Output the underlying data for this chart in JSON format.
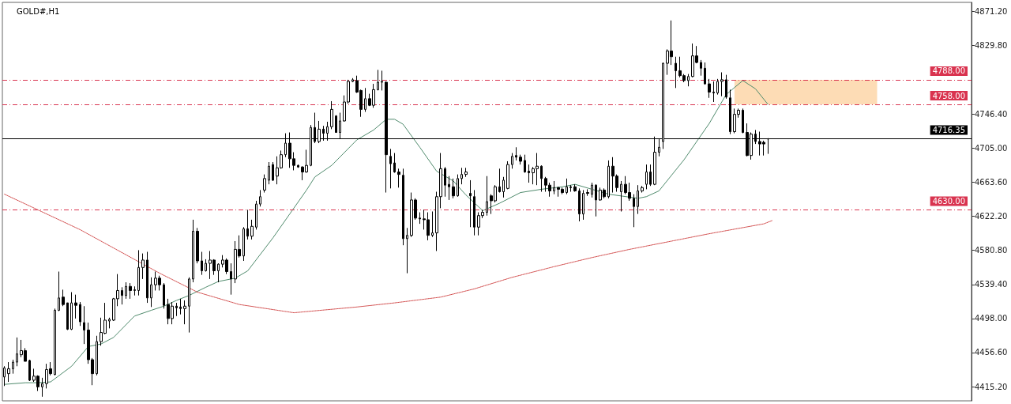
{
  "chart_data": {
    "type": "candlestick",
    "title": "GOLD#,H1",
    "categories": [
      null,
      null,
      null,
      null,
      null,
      null,
      null,
      null,
      null,
      null,
      null,
      null,
      null,
      null,
      null,
      null,
      null,
      null,
      null,
      null,
      null,
      null,
      null,
      null,
      null,
      null,
      null,
      null,
      null,
      null,
      null,
      null,
      null,
      null,
      null,
      null,
      null,
      null,
      null,
      null,
      null,
      null,
      null,
      null,
      null,
      null,
      null,
      null,
      null,
      null,
      null,
      null,
      null,
      null,
      null,
      null,
      null,
      null,
      null,
      null,
      null,
      null,
      null,
      null,
      null,
      null,
      null,
      null,
      null,
      null,
      null,
      null,
      null,
      null,
      null,
      null,
      null,
      null,
      null,
      null,
      null,
      null,
      null,
      null,
      null,
      null,
      null,
      null,
      null,
      null,
      null,
      null,
      null,
      null,
      null,
      null,
      null,
      null,
      null,
      null,
      null,
      null,
      null,
      null,
      null,
      null,
      null,
      null,
      null,
      null,
      null,
      null,
      null,
      null,
      null,
      null,
      null,
      null,
      null,
      null,
      null,
      null,
      null,
      null,
      null,
      null,
      null,
      null,
      null,
      null,
      null,
      null,
      null,
      null,
      null,
      null,
      null,
      null,
      null,
      null,
      null,
      null,
      null,
      null,
      null,
      null,
      null,
      null,
      null,
      null,
      null,
      null,
      null,
      null,
      null,
      null,
      null,
      null,
      null,
      null,
      null,
      null,
      null,
      null,
      null,
      null,
      null,
      null,
      null,
      null,
      null,
      null,
      null,
      null,
      null,
      null,
      null,
      null,
      null,
      null,
      null,
      null,
      null,
      null,
      null,
      null,
      null,
      null,
      null,
      null,
      null,
      null,
      null,
      null,
      null,
      null,
      null,
      null,
      null,
      null,
      null,
      null,
      null,
      null,
      null,
      null,
      null,
      null,
      null,
      null,
      null,
      null,
      null,
      null,
      null,
      null,
      null,
      null,
      null,
      null,
      null,
      null,
      null,
      null,
      null,
      null,
      null,
      null,
      null,
      null,
      null
    ],
    "ohlc": [
      [
        4427,
        4440,
        4416,
        4438
      ],
      [
        4431,
        4445,
        4421,
        4437
      ],
      [
        4437,
        4448,
        4431,
        4445
      ],
      [
        4445,
        4475,
        4440,
        4455
      ],
      [
        4454,
        4472,
        4451,
        4459
      ],
      [
        4459,
        4462,
        4446,
        4446
      ],
      [
        4447,
        4448,
        4422,
        4423
      ],
      [
        4423,
        4437,
        4421,
        4428
      ],
      [
        4428,
        4429,
        4410,
        4415
      ],
      [
        4415,
        4426,
        4403,
        4419
      ],
      [
        4419,
        4443,
        4413,
        4436
      ],
      [
        4437,
        4445,
        4429,
        4431
      ],
      [
        4430,
        4510,
        4429,
        4508
      ],
      [
        4508,
        4555,
        4507,
        4523
      ],
      [
        4524,
        4533,
        4513,
        4515
      ],
      [
        4517,
        4517,
        4484,
        4485
      ],
      [
        4485,
        4530,
        4484,
        4517
      ],
      [
        4517,
        4527,
        4498,
        4514
      ],
      [
        4515,
        4518,
        4489,
        4494
      ],
      [
        4493,
        4513,
        4467,
        4484
      ],
      [
        4484,
        4493,
        4443,
        4448
      ],
      [
        4448,
        4450,
        4417,
        4431
      ],
      [
        4431,
        4477,
        4429,
        4470
      ],
      [
        4470,
        4499,
        4465,
        4481
      ],
      [
        4480,
        4517,
        4479,
        4496
      ],
      [
        4495,
        4499,
        4486,
        4497
      ],
      [
        4496,
        4523,
        4495,
        4522
      ],
      [
        4522,
        4552,
        4513,
        4532
      ],
      [
        4532,
        4536,
        4515,
        4526
      ],
      [
        4526,
        4542,
        4522,
        4537
      ],
      [
        4537,
        4541,
        4522,
        4532
      ],
      [
        4532,
        4537,
        4526,
        4533
      ],
      [
        4532,
        4581,
        4526,
        4560
      ],
      [
        4560,
        4577,
        4546,
        4569
      ],
      [
        4569,
        4579,
        4517,
        4523
      ],
      [
        4523,
        4548,
        4512,
        4539
      ],
      [
        4539,
        4555,
        4532,
        4547
      ],
      [
        4547,
        4550,
        4532,
        4539
      ],
      [
        4539,
        4541,
        4510,
        4514
      ],
      [
        4515,
        4522,
        4491,
        4498
      ],
      [
        4498,
        4518,
        4491,
        4513
      ],
      [
        4513,
        4517,
        4501,
        4511
      ],
      [
        4512,
        4522,
        4503,
        4510
      ],
      [
        4510,
        4520,
        4491,
        4513
      ],
      [
        4513,
        4548,
        4481,
        4546
      ],
      [
        4546,
        4618,
        4542,
        4604
      ],
      [
        4604,
        4608,
        4565,
        4568
      ],
      [
        4568,
        4579,
        4551,
        4556
      ],
      [
        4556,
        4570,
        4555,
        4565
      ],
      [
        4565,
        4580,
        4546,
        4569
      ],
      [
        4569,
        4570,
        4551,
        4556
      ],
      [
        4556,
        4565,
        4542,
        4564
      ],
      [
        4564,
        4575,
        4560,
        4569
      ],
      [
        4569,
        4571,
        4552,
        4555
      ],
      [
        4555,
        4565,
        4527,
        4546
      ],
      [
        4546,
        4592,
        4541,
        4582
      ],
      [
        4582,
        4599,
        4572,
        4574
      ],
      [
        4574,
        4609,
        4568,
        4607
      ],
      [
        4607,
        4630,
        4594,
        4598
      ],
      [
        4598,
        4618,
        4594,
        4610
      ],
      [
        4609,
        4641,
        4606,
        4637
      ],
      [
        4637,
        4654,
        4634,
        4646
      ],
      [
        4654,
        4673,
        4651,
        4668
      ],
      [
        4666,
        4688,
        4661,
        4683
      ],
      [
        4685,
        4688,
        4665,
        4666
      ],
      [
        4671,
        4695,
        4661,
        4681
      ],
      [
        4681,
        4702,
        4680,
        4697
      ],
      [
        4697,
        4723,
        4694,
        4711
      ],
      [
        4711,
        4724,
        4681,
        4692
      ],
      [
        4692,
        4700,
        4678,
        4684
      ],
      [
        4684,
        4685,
        4681,
        4682
      ],
      [
        4682,
        4683,
        4666,
        4676
      ],
      [
        4676,
        4703,
        4675,
        4684
      ],
      [
        4684,
        4733,
        4683,
        4730
      ],
      [
        4730,
        4748,
        4711,
        4713
      ],
      [
        4713,
        4738,
        4711,
        4728
      ],
      [
        4728,
        4732,
        4714,
        4723
      ],
      [
        4723,
        4737,
        4714,
        4731
      ],
      [
        4731,
        4762,
        4728,
        4752
      ],
      [
        4744,
        4745,
        4724,
        4724
      ],
      [
        4724,
        4748,
        4716,
        4738
      ],
      [
        4738,
        4769,
        4737,
        4761
      ],
      [
        4761,
        4788,
        4759,
        4786
      ],
      [
        4786,
        4790,
        4785,
        4788
      ],
      [
        4787,
        4793,
        4772,
        4773
      ],
      [
        4775,
        4776,
        4743,
        4752
      ],
      [
        4752,
        4778,
        4749,
        4765
      ],
      [
        4765,
        4771,
        4756,
        4757
      ],
      [
        4757,
        4783,
        4754,
        4776
      ],
      [
        4776,
        4800,
        4775,
        4785
      ],
      [
        4785,
        4799,
        4775,
        4786
      ],
      [
        4785,
        4786,
        4651,
        4697
      ],
      [
        4695,
        4704,
        4656,
        4686
      ],
      [
        4687,
        4699,
        4675,
        4676
      ],
      [
        4676,
        4680,
        4657,
        4673
      ],
      [
        4672,
        4680,
        4587,
        4595
      ],
      [
        4595,
        4608,
        4553,
        4599
      ],
      [
        4599,
        4651,
        4597,
        4642
      ],
      [
        4642,
        4644,
        4618,
        4620
      ],
      [
        4620,
        4627,
        4613,
        4619
      ],
      [
        4619,
        4630,
        4606,
        4618
      ],
      [
        4618,
        4627,
        4593,
        4599
      ],
      [
        4599,
        4628,
        4597,
        4602
      ],
      [
        4602,
        4652,
        4580,
        4646
      ],
      [
        4646,
        4699,
        4632,
        4680
      ],
      [
        4680,
        4682,
        4646,
        4660
      ],
      [
        4661,
        4671,
        4642,
        4658
      ],
      [
        4658,
        4668,
        4644,
        4647
      ],
      [
        4647,
        4673,
        4646,
        4668
      ],
      [
        4668,
        4681,
        4661,
        4673
      ],
      [
        4673,
        4681,
        4670,
        4676
      ],
      [
        4650,
        4666,
        4609,
        4647
      ],
      [
        4646,
        4654,
        4599,
        4609
      ],
      [
        4609,
        4627,
        4599,
        4623
      ],
      [
        4623,
        4630,
        4620,
        4627
      ],
      [
        4627,
        4671,
        4623,
        4640
      ],
      [
        4647,
        4649,
        4625,
        4641
      ],
      [
        4641,
        4660,
        4639,
        4658
      ],
      [
        4658,
        4680,
        4651,
        4652
      ],
      [
        4652,
        4670,
        4645,
        4666
      ],
      [
        4656,
        4689,
        4655,
        4685
      ],
      [
        4685,
        4699,
        4680,
        4695
      ],
      [
        4696,
        4706,
        4690,
        4694
      ],
      [
        4694,
        4697,
        4685,
        4689
      ],
      [
        4690,
        4697,
        4675,
        4676
      ],
      [
        4677,
        4685,
        4663,
        4675
      ],
      [
        4675,
        4682,
        4661,
        4680
      ],
      [
        4680,
        4699,
        4660,
        4683
      ],
      [
        4683,
        4684,
        4652,
        4668
      ],
      [
        4668,
        4670,
        4652,
        4660
      ],
      [
        4660,
        4663,
        4646,
        4653
      ],
      [
        4653,
        4665,
        4649,
        4657
      ],
      [
        4657,
        4658,
        4646,
        4655
      ],
      [
        4655,
        4657,
        4649,
        4651
      ],
      [
        4651,
        4668,
        4649,
        4658
      ],
      [
        4658,
        4660,
        4652,
        4657
      ],
      [
        4658,
        4661,
        4652,
        4653
      ],
      [
        4653,
        4656,
        4616,
        4625
      ],
      [
        4625,
        4654,
        4618,
        4650
      ],
      [
        4651,
        4655,
        4647,
        4650
      ],
      [
        4649,
        4663,
        4645,
        4660
      ],
      [
        4660,
        4661,
        4622,
        4642
      ],
      [
        4642,
        4657,
        4641,
        4654
      ],
      [
        4654,
        4656,
        4644,
        4646
      ],
      [
        4646,
        4690,
        4644,
        4683
      ],
      [
        4683,
        4694,
        4651,
        4671
      ],
      [
        4671,
        4673,
        4652,
        4657
      ],
      [
        4652,
        4665,
        4628,
        4661
      ],
      [
        4661,
        4671,
        4649,
        4651
      ],
      [
        4651,
        4663,
        4641,
        4644
      ],
      [
        4644,
        4649,
        4609,
        4634
      ],
      [
        4634,
        4660,
        4625,
        4653
      ],
      [
        4653,
        4659,
        4651,
        4657
      ],
      [
        4661,
        4685,
        4655,
        4676
      ],
      [
        4676,
        4685,
        4659,
        4661
      ],
      [
        4661,
        4719,
        4660,
        4700
      ],
      [
        4700,
        4716,
        4695,
        4706
      ],
      [
        4713,
        4809,
        4704,
        4808
      ],
      [
        4808,
        4825,
        4794,
        4823
      ],
      [
        4823,
        4860,
        4806,
        4816
      ],
      [
        4808,
        4816,
        4778,
        4799
      ],
      [
        4799,
        4816,
        4791,
        4793
      ],
      [
        4793,
        4795,
        4785,
        4787
      ],
      [
        4787,
        4795,
        4780,
        4792
      ],
      [
        4792,
        4832,
        4791,
        4817
      ],
      [
        4817,
        4829,
        4808,
        4809
      ],
      [
        4809,
        4812,
        4793,
        4802
      ],
      [
        4802,
        4809,
        4782,
        4783
      ],
      [
        4783,
        4789,
        4766,
        4773
      ],
      [
        4773,
        4786,
        4761,
        4772
      ],
      [
        4772,
        4789,
        4770,
        4786
      ],
      [
        4786,
        4797,
        4768,
        4788
      ],
      [
        4788,
        4794,
        4765,
        4767
      ],
      [
        4766,
        4776,
        4722,
        4725
      ],
      [
        4725,
        4753,
        4723,
        4746
      ],
      [
        4746,
        4753,
        4742,
        4751
      ],
      [
        4751,
        4753,
        4723,
        4724
      ],
      [
        4724,
        4735,
        4695,
        4696
      ],
      [
        4696,
        4724,
        4691,
        4722
      ],
      [
        4722,
        4727,
        4710,
        4713
      ],
      [
        4713,
        4725,
        4696,
        4710
      ],
      [
        4712,
        4714,
        4696,
        4710
      ],
      [
        4716,
        4717,
        4698,
        4716.35
      ],
      null,
      null,
      null,
      null,
      null,
      null,
      null,
      null,
      null,
      null,
      null,
      null,
      null,
      null,
      null,
      null,
      null,
      null,
      null,
      null,
      null,
      null,
      null,
      null,
      null,
      null,
      null,
      null,
      null,
      null,
      null,
      null,
      null,
      null,
      null,
      null,
      null,
      null,
      null,
      null,
      null,
      null,
      null,
      null,
      null,
      null,
      null,
      null
    ],
    "series": [
      {
        "type": "line",
        "color": "#4f8a6c",
        "line_style": "solid",
        "values": [
          4418,
          null,
          null,
          null,
          null,
          4420,
          null,
          null,
          4420,
          null,
          null,
          4421,
          null,
          null,
          null,
          null,
          4440,
          null,
          null,
          null,
          4464,
          null,
          null,
          4467,
          null,
          null,
          4475,
          null,
          null,
          null,
          null,
          4501,
          null,
          null,
          null,
          4508,
          null,
          null,
          4513,
          null,
          null,
          4520,
          null,
          null,
          4526,
          null,
          null,
          null,
          4536,
          null,
          null,
          4543,
          null,
          null,
          null,
          4547,
          null,
          null,
          4556,
          null,
          null,
          null,
          null,
          null,
          4596,
          null,
          null,
          null,
          4625,
          null,
          null,
          null,
          4654,
          null,
          4670,
          null,
          null,
          null,
          4684,
          null,
          null,
          null,
          null,
          null,
          4715,
          null,
          null,
          null,
          4727,
          null,
          null,
          4740,
          null,
          4740,
          null,
          4734,
          null,
          null,
          null,
          4706,
          null,
          null,
          null,
          4677,
          null,
          null,
          null,
          4665,
          null,
          null,
          4648,
          null,
          null,
          null,
          4629,
          null,
          null,
          null,
          4638,
          null,
          null,
          null,
          null,
          4651,
          null,
          null,
          null,
          null,
          4655,
          null,
          null,
          null,
          null,
          4658,
          null,
          null,
          4661,
          null,
          null,
          null,
          4655,
          null,
          null,
          null,
          4649,
          null,
          null,
          null,
          null,
          null,
          null,
          4644,
          null,
          4646,
          null,
          null,
          4653,
          null,
          null,
          null,
          null,
          null,
          4691,
          null,
          null,
          null,
          null,
          null,
          4735,
          null,
          null,
          null,
          4770,
          null,
          null,
          null,
          4787,
          null,
          null,
          4777,
          null,
          null,
          4758,
          null,
          null,
          null,
          null,
          null,
          null,
          null,
          null,
          null,
          null,
          null,
          null,
          null,
          null,
          null,
          null,
          null,
          null,
          null,
          null,
          null,
          null,
          null,
          null,
          null,
          null,
          null,
          null,
          null,
          null,
          null,
          null,
          null,
          null,
          null,
          null,
          null,
          null,
          null,
          null,
          null,
          null,
          null,
          null,
          null,
          null,
          null,
          null
        ]
      },
      {
        "type": "line",
        "color": "#d04848",
        "line_style": "dotted",
        "values": [
          4649,
          null,
          null,
          null,
          null,
          null,
          null,
          null,
          null,
          null,
          null,
          null,
          null,
          null,
          null,
          null,
          null,
          null,
          4606,
          null,
          null,
          null,
          null,
          null,
          null,
          null,
          null,
          null,
          null,
          null,
          null,
          null,
          null,
          null,
          null,
          null,
          null,
          4553,
          null,
          null,
          null,
          null,
          null,
          null,
          null,
          null,
          4530,
          null,
          null,
          null,
          null,
          null,
          null,
          null,
          null,
          null,
          4515,
          null,
          null,
          null,
          null,
          null,
          null,
          null,
          null,
          null,
          null,
          null,
          null,
          4505,
          null,
          null,
          null,
          null,
          null,
          null,
          null,
          null,
          null,
          null,
          null,
          null,
          null,
          null,
          4512,
          null,
          null,
          null,
          null,
          null,
          null,
          null,
          null,
          4517,
          null,
          null,
          null,
          null,
          null,
          null,
          null,
          null,
          null,
          null,
          4524,
          null,
          null,
          null,
          null,
          null,
          null,
          null,
          4534,
          null,
          null,
          null,
          null,
          null,
          null,
          null,
          null,
          4548,
          null,
          null,
          null,
          null,
          null,
          null,
          null,
          null,
          null,
          4561,
          null,
          null,
          null,
          null,
          null,
          null,
          null,
          null,
          4572,
          null,
          null,
          null,
          null,
          null,
          null,
          null,
          null,
          4582,
          null,
          null,
          null,
          null,
          null,
          null,
          null,
          null,
          null,
          4592,
          null,
          null,
          null,
          null,
          null,
          null,
          null,
          null,
          4601,
          null,
          null,
          null,
          null,
          null,
          null,
          null,
          null,
          null,
          null,
          null,
          null,
          4613,
          null,
          4617,
          null,
          null,
          null,
          null,
          null,
          null,
          null,
          null,
          null,
          null,
          null,
          null,
          null,
          null,
          null,
          null,
          null,
          null,
          null,
          null,
          null,
          null,
          null,
          null,
          null,
          null,
          null,
          null,
          null,
          null,
          null,
          null,
          null,
          null,
          null,
          null,
          null,
          null,
          null,
          null,
          null,
          null,
          null,
          null,
          null,
          null,
          null
        ]
      }
    ],
    "ylim": [
      4398,
      4882
    ],
    "yticks": [
      {
        "value": 4871.2,
        "label": "4871.20"
      },
      {
        "value": 4829.8,
        "label": "4829.80"
      },
      {
        "value": 4746.4,
        "label": "4746.40"
      },
      {
        "value": 4705,
        "label": "4705.00"
      },
      {
        "value": 4663.6,
        "label": "4663.60"
      },
      {
        "value": 4622.2,
        "label": "4622.20"
      },
      {
        "value": 4580.8,
        "label": "4580.80"
      },
      {
        "value": 4539.4,
        "label": "4539.40"
      },
      {
        "value": 4498,
        "label": "4498.00"
      },
      {
        "value": 4456.6,
        "label": "4456.60"
      },
      {
        "value": 4415.2,
        "label": "4415.20"
      }
    ],
    "ref_lines": [
      {
        "axis": "y",
        "value": 4788,
        "label": "4788.00",
        "color": "#d9334f",
        "line_style": "dashed"
      },
      {
        "axis": "y",
        "value": 4758,
        "label": "4758.00",
        "color": "#d9334f",
        "line_style": "dashed"
      },
      {
        "axis": "y",
        "value": 4630,
        "label": "4630.00",
        "color": "#d9334f",
        "line_style": "dashed"
      },
      {
        "axis": "y",
        "value": 4716.35,
        "label": "4716.35",
        "color": "#000000",
        "line_style": "solid"
      }
    ],
    "bands": [
      {
        "axis": "y",
        "from": 4758,
        "to": 4788,
        "color": "#fddcb5"
      }
    ],
    "grid": false
  }
}
